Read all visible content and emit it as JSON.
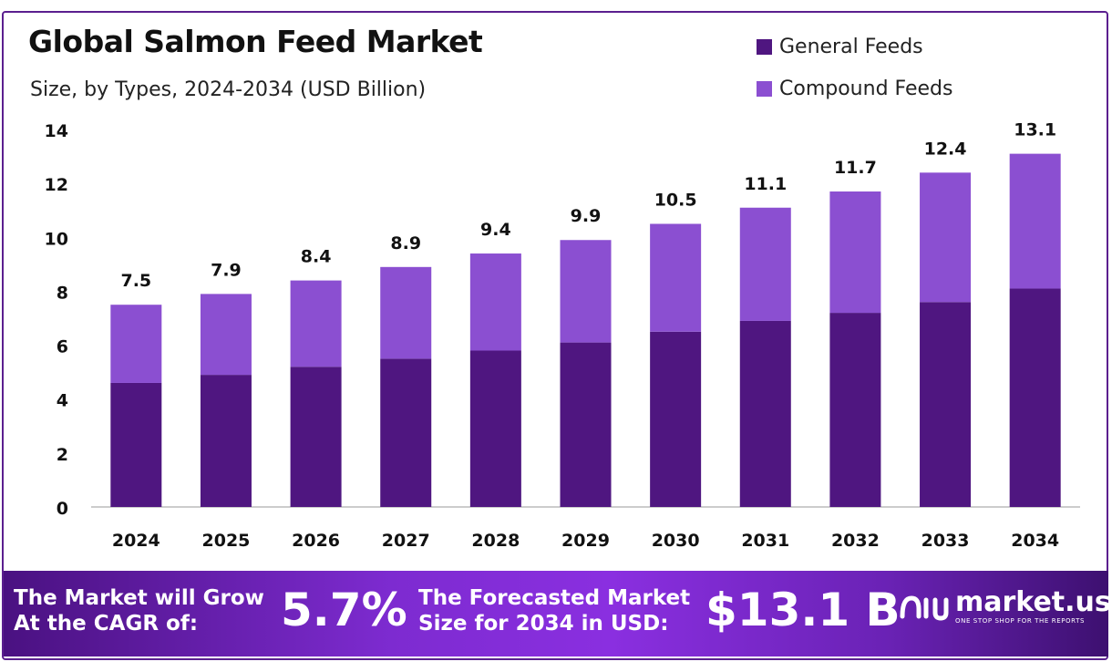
{
  "header": {
    "title": "Global Salmon Feed Market",
    "subtitle": "Size, by Types, 2024-2034 (USD Billion)"
  },
  "colors": {
    "general": "#4f1680",
    "compound": "#8b4fd1",
    "axis": "#bbbbbb",
    "frame": "#5b1f8f"
  },
  "chart_data": {
    "type": "bar",
    "stacked": true,
    "categories": [
      "2024",
      "2025",
      "2026",
      "2027",
      "2028",
      "2029",
      "2030",
      "2031",
      "2032",
      "2033",
      "2034"
    ],
    "series": [
      {
        "name": "General Feeds",
        "values": [
          4.6,
          4.9,
          5.2,
          5.5,
          5.8,
          6.1,
          6.5,
          6.9,
          7.2,
          7.6,
          8.1
        ]
      },
      {
        "name": "Compound Feeds",
        "values": [
          2.9,
          3.0,
          3.2,
          3.4,
          3.6,
          3.8,
          4.0,
          4.2,
          4.5,
          4.8,
          5.0
        ]
      }
    ],
    "totals": [
      "7.5",
      "7.9",
      "8.4",
      "8.9",
      "9.4",
      "9.9",
      "10.5",
      "11.1",
      "11.7",
      "12.4",
      "13.1"
    ],
    "ylim": [
      0,
      14
    ],
    "yticks": [
      "0",
      "2",
      "4",
      "6",
      "8",
      "10",
      "12",
      "14"
    ],
    "grid": false,
    "legend_position": "top-right"
  },
  "banner": {
    "cagr_line1": "The Market will Grow",
    "cagr_line2": "At the CAGR of:",
    "cagr_value": "5.7%",
    "forecast_line1": "The Forecasted Market",
    "forecast_line2": "Size for 2034 in USD:",
    "forecast_value": "$13.1 B",
    "logo_name": "market.us",
    "logo_tagline": "ONE STOP SHOP FOR THE REPORTS"
  }
}
